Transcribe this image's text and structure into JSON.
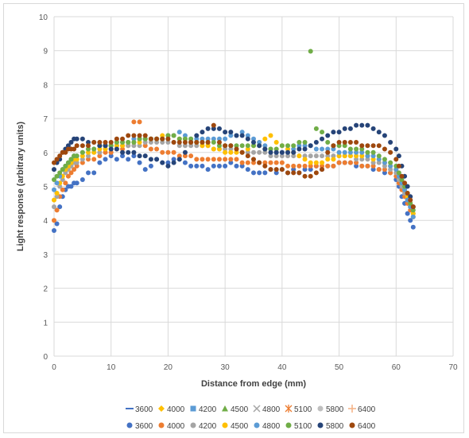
{
  "chart_data": {
    "type": "scatter",
    "title": "",
    "xlabel": "Distance from edge (mm)",
    "ylabel": "Light response (arbitrary units)",
    "xlim": [
      0,
      70
    ],
    "ylim": [
      0,
      10
    ],
    "x_ticks": [
      "0",
      "10",
      "20",
      "30",
      "40",
      "50",
      "60",
      "70"
    ],
    "y_ticks": [
      "0",
      "1",
      "2",
      "3",
      "4",
      "5",
      "6",
      "7",
      "8",
      "9",
      "10"
    ],
    "grid": true,
    "legend_position": "bottom",
    "colors": {
      "blue": "#4472C4",
      "orange": "#ED7D31",
      "gray": "#A5A5A5",
      "gold": "#FFC000",
      "lightblue": "#5B9BD5",
      "green": "#70AD47",
      "navy": "#264478",
      "brown": "#9E480E"
    },
    "legend_row1": [
      {
        "name": "3600",
        "marker": "dash",
        "color": "#4472C4"
      },
      {
        "name": "4000",
        "marker": "diamond",
        "color": "#FFC000"
      },
      {
        "name": "4200",
        "marker": "square",
        "color": "#5B9BD5"
      },
      {
        "name": "4500",
        "marker": "triangle",
        "color": "#70AD47"
      },
      {
        "name": "4800",
        "marker": "x",
        "color": "#A5A5A5"
      },
      {
        "name": "5100",
        "marker": "star",
        "color": "#ED7D31"
      },
      {
        "name": "5800",
        "marker": "circle",
        "color": "#BFBFBF"
      },
      {
        "name": "6400",
        "marker": "plus",
        "color": "#F4B183"
      }
    ],
    "legend_row2": [
      {
        "name": "3600",
        "marker": "circle",
        "color": "#4472C4"
      },
      {
        "name": "4000",
        "marker": "circle",
        "color": "#ED7D31"
      },
      {
        "name": "4200",
        "marker": "circle",
        "color": "#A5A5A5"
      },
      {
        "name": "4500",
        "marker": "circle",
        "color": "#FFC000"
      },
      {
        "name": "4800",
        "marker": "circle",
        "color": "#5B9BD5"
      },
      {
        "name": "5100",
        "marker": "circle",
        "color": "#70AD47"
      },
      {
        "name": "5800",
        "marker": "circle",
        "color": "#264478"
      },
      {
        "name": "6400",
        "marker": "circle",
        "color": "#9E480E"
      }
    ],
    "x": [
      0,
      0.5,
      1,
      1.5,
      2,
      2.5,
      3,
      3.5,
      4,
      5,
      6,
      7,
      8,
      9,
      10,
      11,
      12,
      13,
      14,
      15,
      16,
      17,
      18,
      19,
      20,
      21,
      22,
      23,
      24,
      25,
      26,
      27,
      28,
      29,
      30,
      31,
      32,
      33,
      34,
      35,
      36,
      37,
      38,
      39,
      40,
      41,
      42,
      43,
      44,
      45,
      46,
      47,
      48,
      49,
      50,
      51,
      52,
      53,
      54,
      55,
      56,
      57,
      58,
      59,
      60,
      60.5,
      61,
      61.5,
      62,
      62.5,
      63
    ],
    "series": [
      {
        "name": "3600",
        "color": "#4472C4",
        "values": [
          3.7,
          3.9,
          4.4,
          4.7,
          4.9,
          5.0,
          5.0,
          5.1,
          5.1,
          5.2,
          5.4,
          5.4,
          5.7,
          5.8,
          5.9,
          5.8,
          5.9,
          5.8,
          5.9,
          5.7,
          5.5,
          5.6,
          5.8,
          5.7,
          5.7,
          5.8,
          5.8,
          5.7,
          5.6,
          5.6,
          5.6,
          5.5,
          5.6,
          5.6,
          5.6,
          5.7,
          5.6,
          5.6,
          5.5,
          5.4,
          5.4,
          5.4,
          5.5,
          5.4,
          5.5,
          5.4,
          5.5,
          5.4,
          5.5,
          5.5,
          5.6,
          5.5,
          5.6,
          5.6,
          5.7,
          5.7,
          5.7,
          5.6,
          5.6,
          5.6,
          5.5,
          5.5,
          5.4,
          5.4,
          5.2,
          5.0,
          4.7,
          4.5,
          4.2,
          4.0,
          3.8
        ]
      },
      {
        "name": "4000",
        "color": "#ED7D31",
        "values": [
          4.0,
          4.3,
          4.7,
          4.9,
          5.1,
          5.3,
          5.4,
          5.5,
          5.6,
          5.7,
          5.8,
          5.8,
          5.9,
          6.0,
          6.0,
          6.1,
          6.1,
          6.2,
          6.9,
          6.9,
          6.2,
          6.1,
          6.1,
          6.0,
          6.0,
          6.0,
          5.9,
          5.9,
          5.9,
          5.8,
          5.8,
          5.8,
          5.8,
          5.8,
          5.8,
          5.8,
          5.8,
          5.7,
          5.7,
          5.7,
          5.7,
          5.7,
          5.7,
          5.7,
          5.7,
          5.6,
          5.6,
          5.6,
          5.6,
          5.6,
          5.6,
          5.6,
          5.6,
          5.6,
          5.7,
          5.7,
          5.7,
          5.7,
          5.6,
          5.6,
          5.6,
          5.5,
          5.5,
          5.4,
          5.3,
          5.1,
          4.9,
          4.7,
          4.5,
          4.3,
          4.1
        ]
      },
      {
        "name": "4200",
        "color": "#A5A5A5",
        "values": [
          4.4,
          4.7,
          5.0,
          5.2,
          5.4,
          5.5,
          5.6,
          5.7,
          5.7,
          5.8,
          5.9,
          6.0,
          6.0,
          6.1,
          6.1,
          6.2,
          6.2,
          6.2,
          6.2,
          6.2,
          6.3,
          6.3,
          6.3,
          6.3,
          6.3,
          6.3,
          6.2,
          6.2,
          6.2,
          6.2,
          6.2,
          6.2,
          6.1,
          6.1,
          6.1,
          6.1,
          6.1,
          6.0,
          6.0,
          6.0,
          6.0,
          6.0,
          5.9,
          5.9,
          5.9,
          5.9,
          5.9,
          5.9,
          5.9,
          5.9,
          5.9,
          5.9,
          5.9,
          5.9,
          5.9,
          5.9,
          5.9,
          5.8,
          5.8,
          5.8,
          5.7,
          5.7,
          5.6,
          5.5,
          5.4,
          5.2,
          5.0,
          4.8,
          4.6,
          4.4,
          4.2
        ]
      },
      {
        "name": "4500",
        "color": "#FFC000",
        "values": [
          4.6,
          4.8,
          5.1,
          5.3,
          5.5,
          5.6,
          5.7,
          5.8,
          5.8,
          5.9,
          6.0,
          6.0,
          6.1,
          6.1,
          6.2,
          6.2,
          6.2,
          6.3,
          6.3,
          6.3,
          6.4,
          6.4,
          6.4,
          6.5,
          6.5,
          6.5,
          6.4,
          6.4,
          6.3,
          6.3,
          6.2,
          6.2,
          6.1,
          6.1,
          6.0,
          6.0,
          6.0,
          6.0,
          6.1,
          6.2,
          6.3,
          6.4,
          6.5,
          6.3,
          6.2,
          6.1,
          6.0,
          5.9,
          5.8,
          5.7,
          5.7,
          5.7,
          5.8,
          5.8,
          5.9,
          5.9,
          5.9,
          5.9,
          5.9,
          5.9,
          5.8,
          5.8,
          5.7,
          5.6,
          5.5,
          5.3,
          5.1,
          4.9,
          4.7,
          4.5,
          4.2
        ]
      },
      {
        "name": "4800",
        "color": "#5B9BD5",
        "values": [
          4.9,
          5.1,
          5.3,
          5.5,
          5.6,
          5.7,
          5.8,
          5.9,
          5.9,
          6.0,
          6.1,
          6.1,
          6.2,
          6.2,
          6.2,
          6.3,
          6.3,
          6.3,
          6.4,
          6.4,
          6.4,
          6.4,
          6.4,
          6.4,
          6.5,
          6.5,
          6.6,
          6.5,
          6.4,
          6.4,
          6.4,
          6.4,
          6.4,
          6.4,
          6.4,
          6.5,
          6.5,
          6.6,
          6.5,
          6.4,
          6.3,
          6.2,
          6.1,
          6.0,
          6.0,
          6.0,
          6.1,
          6.2,
          6.2,
          6.2,
          6.1,
          6.1,
          6.1,
          6.1,
          6.0,
          6.0,
          6.0,
          6.0,
          6.0,
          5.9,
          5.9,
          5.8,
          5.7,
          5.6,
          5.5,
          5.3,
          5.1,
          4.9,
          4.6,
          4.4,
          4.1
        ]
      },
      {
        "name": "5100",
        "color": "#70AD47",
        "values": [
          5.2,
          5.3,
          5.4,
          5.5,
          5.6,
          5.7,
          5.8,
          5.9,
          5.9,
          6.0,
          6.1,
          6.1,
          6.2,
          6.2,
          6.2,
          6.3,
          6.3,
          6.3,
          6.3,
          6.4,
          6.4,
          6.4,
          6.4,
          6.4,
          6.5,
          6.5,
          6.4,
          6.4,
          6.4,
          6.3,
          6.3,
          6.3,
          6.3,
          6.2,
          6.2,
          6.2,
          6.2,
          6.2,
          6.2,
          6.2,
          6.2,
          6.1,
          6.1,
          6.1,
          6.2,
          6.2,
          6.2,
          6.3,
          6.3,
          8.98,
          6.7,
          6.6,
          6.3,
          6.2,
          6.2,
          6.2,
          6.1,
          6.1,
          6.1,
          6.0,
          6.0,
          5.9,
          5.8,
          5.7,
          5.6,
          5.4,
          5.2,
          5.0,
          4.8,
          4.5,
          4.3
        ]
      },
      {
        "name": "5800",
        "color": "#264478",
        "values": [
          5.5,
          5.7,
          5.8,
          6.0,
          6.1,
          6.2,
          6.3,
          6.4,
          6.4,
          6.4,
          6.3,
          6.3,
          6.2,
          6.2,
          6.1,
          6.1,
          6.0,
          6.0,
          6.0,
          5.9,
          5.9,
          5.8,
          5.8,
          5.7,
          5.6,
          5.7,
          5.8,
          6.0,
          6.3,
          6.5,
          6.6,
          6.7,
          6.7,
          6.7,
          6.6,
          6.6,
          6.5,
          6.5,
          6.4,
          6.3,
          6.2,
          6.1,
          6.0,
          6.0,
          6.0,
          6.0,
          6.0,
          6.1,
          6.1,
          6.2,
          6.3,
          6.4,
          6.5,
          6.6,
          6.6,
          6.7,
          6.7,
          6.8,
          6.8,
          6.8,
          6.7,
          6.6,
          6.5,
          6.3,
          6.1,
          5.9,
          5.6,
          5.3,
          5.0,
          4.7,
          4.4
        ]
      },
      {
        "name": "6400",
        "color": "#9E480E",
        "values": [
          5.7,
          5.8,
          5.9,
          6.0,
          6.0,
          6.1,
          6.1,
          6.1,
          6.2,
          6.2,
          6.2,
          6.3,
          6.3,
          6.3,
          6.3,
          6.4,
          6.4,
          6.5,
          6.5,
          6.5,
          6.5,
          6.4,
          6.4,
          6.4,
          6.4,
          6.3,
          6.3,
          6.3,
          6.3,
          6.3,
          6.3,
          6.3,
          6.8,
          6.3,
          6.2,
          6.2,
          6.1,
          6.0,
          5.9,
          5.8,
          5.7,
          5.6,
          5.5,
          5.5,
          5.5,
          5.4,
          5.4,
          5.4,
          5.3,
          5.3,
          5.4,
          5.5,
          6.0,
          6.2,
          6.3,
          6.3,
          6.3,
          6.3,
          6.2,
          6.2,
          6.2,
          6.2,
          6.1,
          6.0,
          5.8,
          5.6,
          5.3,
          5.1,
          4.8,
          4.6,
          4.4
        ]
      }
    ]
  }
}
